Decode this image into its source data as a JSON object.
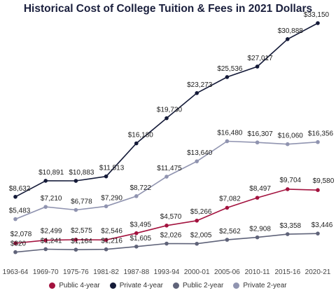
{
  "chart_data": {
    "type": "line",
    "title": "Historical Cost of College Tuition & Fees in 2021 Dollars",
    "xlabel": "",
    "ylabel": "",
    "grid": false,
    "legend_position": "bottom",
    "ylim": [
      0,
      35000
    ],
    "categories": [
      "1963-64",
      "1969-70",
      "1975-76",
      "1981-82",
      "1987-88",
      "1993-94",
      "2000-01",
      "2005-06",
      "2010-11",
      "2015-16",
      "2020-21"
    ],
    "series": [
      {
        "name": "Public 4-year",
        "color": "#a3123e",
        "values": [
          2078,
          2499,
          2575,
          2546,
          3495,
          4570,
          5266,
          7082,
          8497,
          9704,
          9580
        ],
        "labels": [
          "$2,078",
          "$2,499",
          "$2,575",
          "$2,546",
          "$3,495",
          "$4,570",
          "$5,266",
          "$7,082",
          "$8,497",
          "$9,704",
          "$9,580"
        ]
      },
      {
        "name": "Private 4-year",
        "color": "#141a38",
        "values": [
          8632,
          10891,
          10883,
          11513,
          16180,
          19730,
          23273,
          25536,
          27017,
          30888,
          33150
        ],
        "labels": [
          "$8,632",
          "$10,891",
          "$10,883",
          "$11,513",
          "$16,180",
          "$19,730",
          "$23,273",
          "$25,536",
          "$27,017",
          "$30,888",
          "$33,150"
        ]
      },
      {
        "name": "Public 2-year",
        "color": "#5f6379",
        "values": [
          820,
          1241,
          1164,
          1216,
          1605,
          2026,
          2005,
          2562,
          2908,
          3358,
          3446
        ],
        "labels": [
          "$820",
          "$1,241",
          "$1,164",
          "$1,216",
          "$1,605",
          "$2,026",
          "$2,005",
          "$2,562",
          "$2,908",
          "$3,358",
          "$3,446"
        ]
      },
      {
        "name": "Private 2-year",
        "color": "#9094b0",
        "values": [
          5483,
          7210,
          6778,
          7290,
          8722,
          11475,
          13640,
          16480,
          16307,
          16060,
          16356
        ],
        "labels": [
          "$5,483",
          "$7,210",
          "$6,778",
          "$7,290",
          "$8,722",
          "$11,475",
          "$13,640",
          "$16,480",
          "$16,307",
          "$16,060",
          "$16,356"
        ]
      }
    ]
  }
}
